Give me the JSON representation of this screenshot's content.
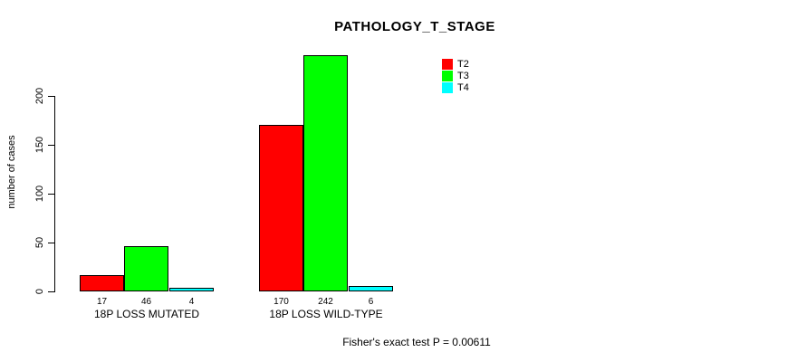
{
  "chart_data": {
    "type": "bar",
    "title": "PATHOLOGY_T_STAGE",
    "ylabel": "number of cases",
    "xlabel": "",
    "categories": [
      "18P LOSS MUTATED",
      "18P LOSS WILD-TYPE"
    ],
    "series": [
      {
        "name": "T2",
        "color": "#ff0000",
        "values": [
          17,
          170
        ]
      },
      {
        "name": "T3",
        "color": "#00ff00",
        "values": [
          46,
          242
        ]
      },
      {
        "name": "T4",
        "color": "#00ffff",
        "values": [
          4,
          6
        ]
      }
    ],
    "bar_value_labels": [
      [
        "17",
        "46",
        "4"
      ],
      [
        "170",
        "242",
        "6"
      ]
    ],
    "yticks": [
      0,
      50,
      100,
      150,
      200
    ],
    "ylim": [
      0,
      242
    ],
    "grid": false,
    "legend_position": "top-right",
    "annotation": "Fisher's exact test P = 0.00611"
  }
}
